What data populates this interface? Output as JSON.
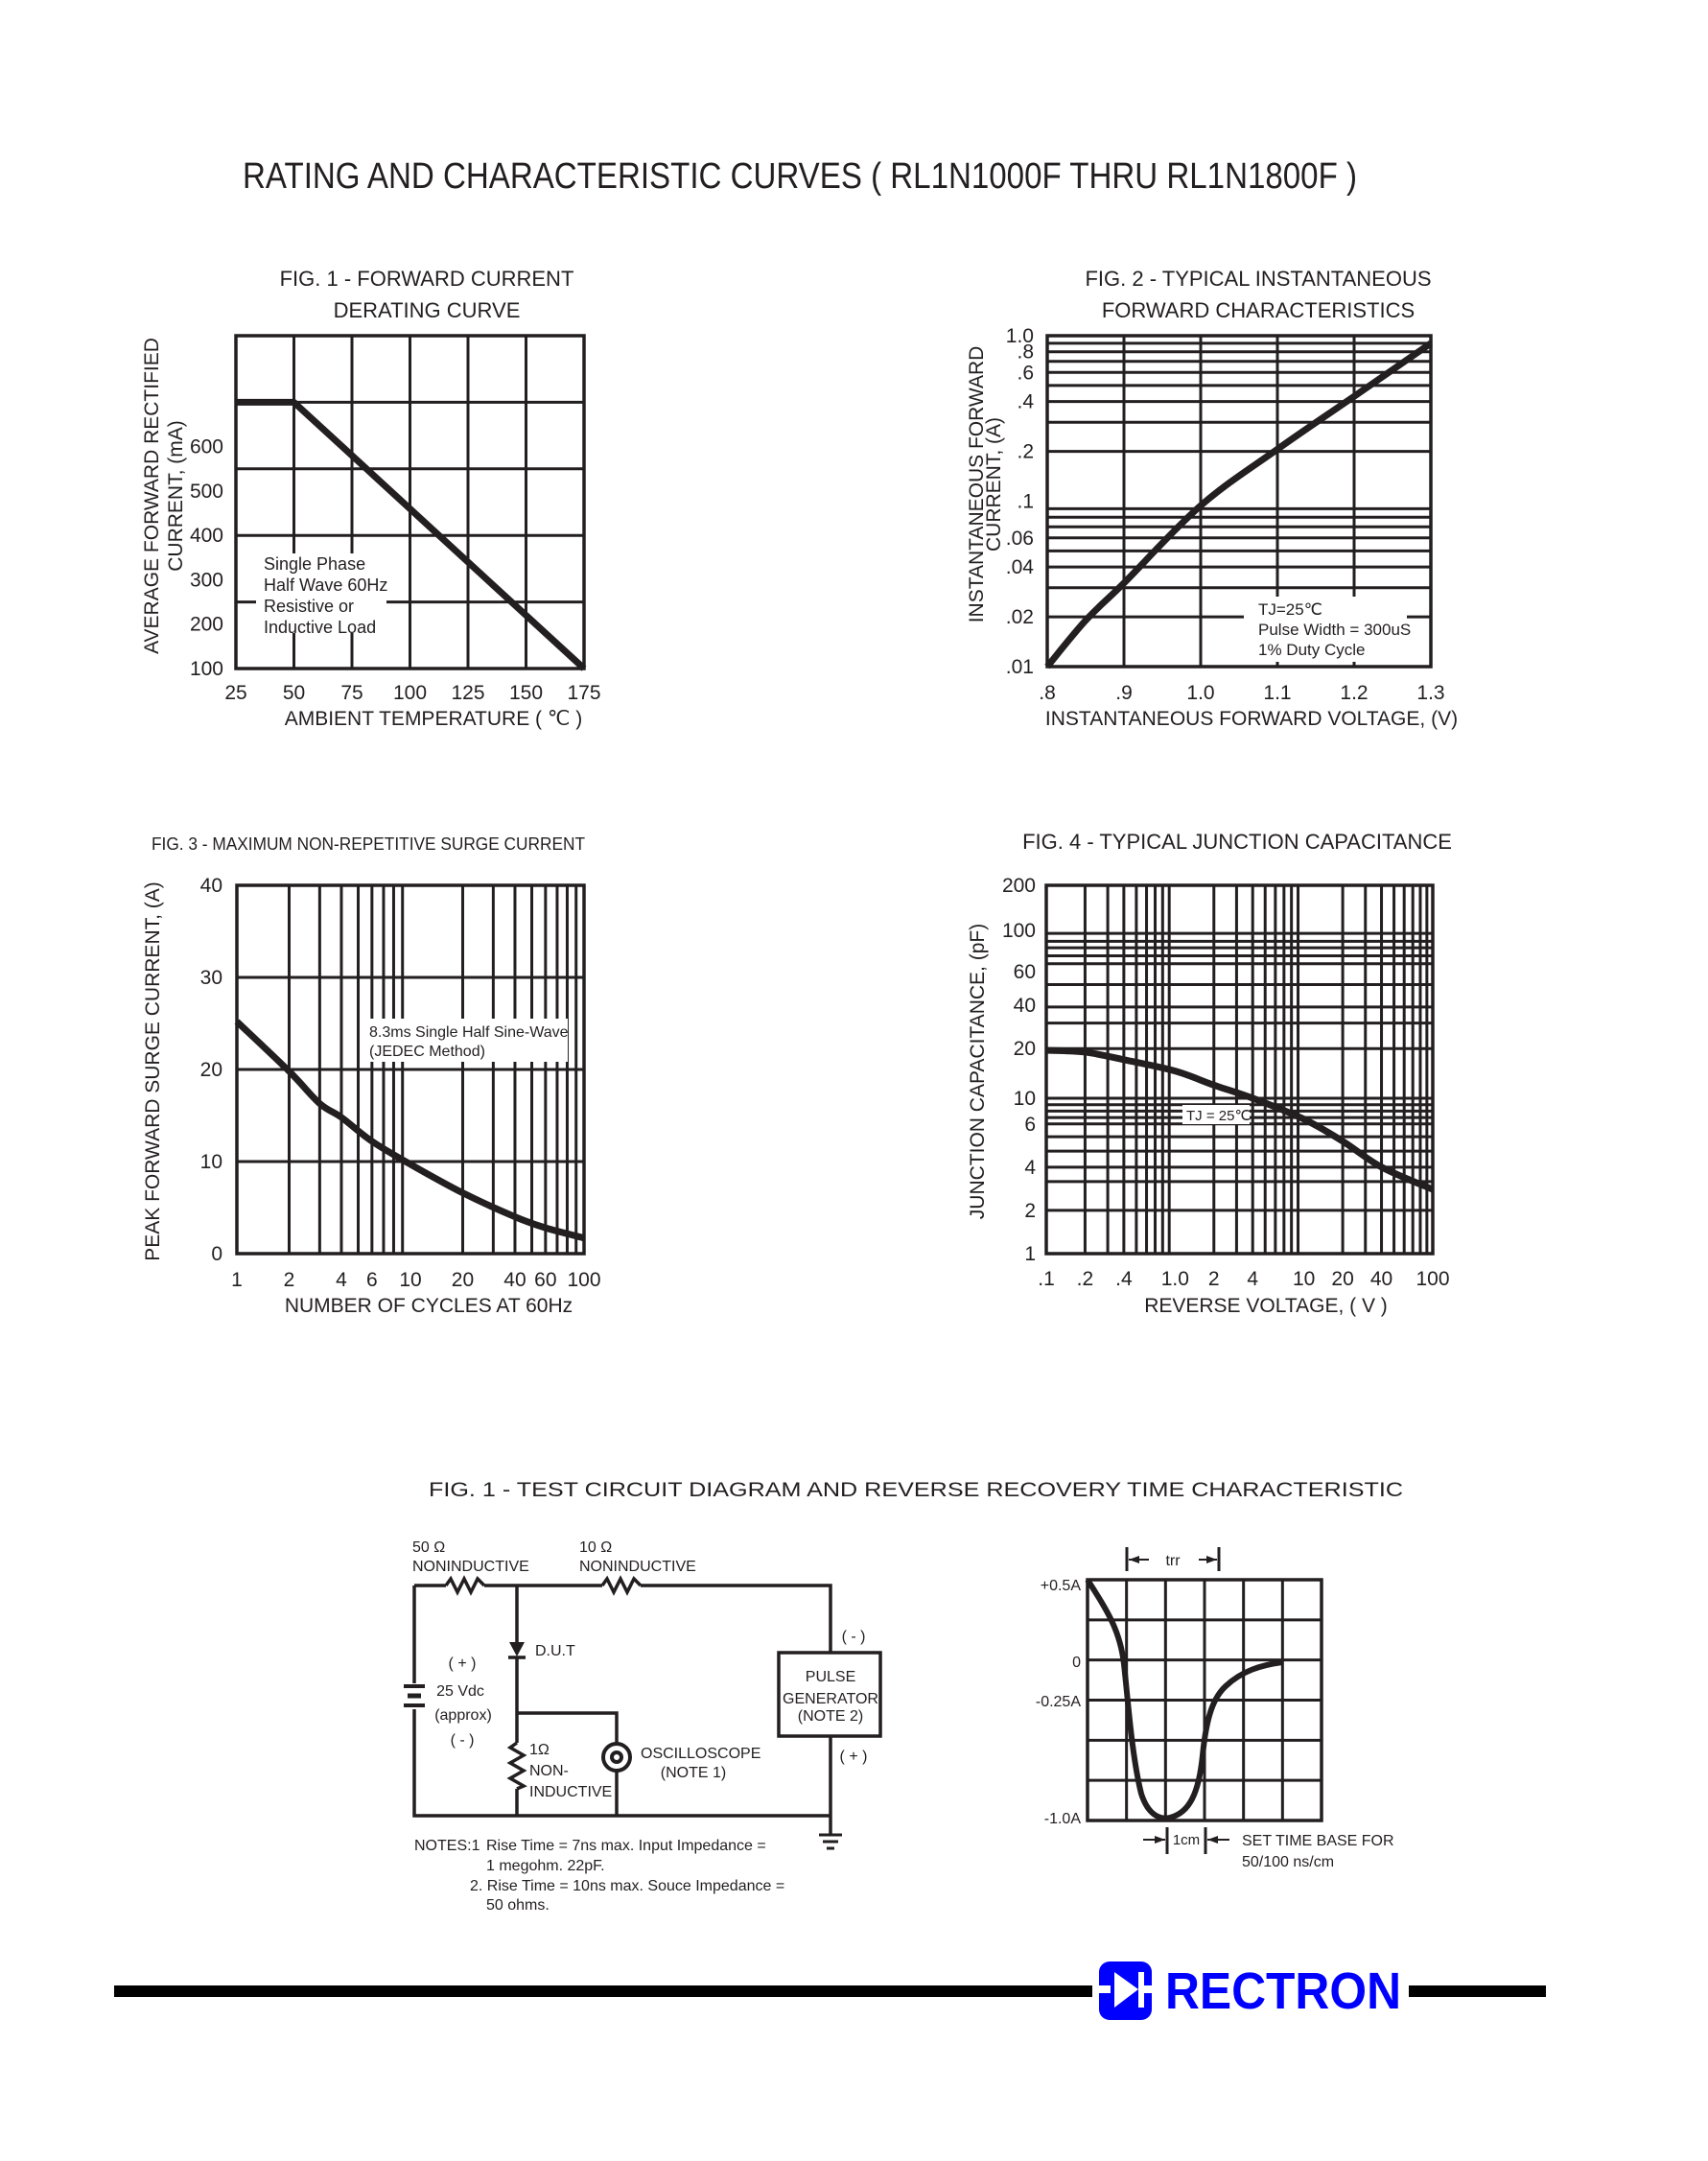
{
  "page_title": "RATING AND CHARACTERISTIC CURVES ( RL1N1000F THRU RL1N1800F )",
  "chart_data": [
    {
      "type": "line",
      "title_line1": "FIG. 1 - FORWARD CURRENT",
      "title_line2": "DERATING CURVE",
      "xlabel": "AMBIENT TEMPERATURE ( ℃ )",
      "ylabel_line1": "AVERAGE FORWARD RECTIFIED",
      "ylabel_line2": "CURRENT, (mA)",
      "x_scale": "linear",
      "y_scale": "linear",
      "xlim": [
        25,
        175
      ],
      "ylim": [
        100,
        850
      ],
      "grid": true,
      "x_ticks": [
        {
          "label": "25",
          "value": 25
        },
        {
          "label": "50",
          "value": 50
        },
        {
          "label": "75",
          "value": 75
        },
        {
          "label": "100",
          "value": 100
        },
        {
          "label": "125",
          "value": 125
        },
        {
          "label": "150",
          "value": 150
        },
        {
          "label": "175",
          "value": 175
        }
      ],
      "y_ticks": [
        {
          "label": "600",
          "value": 600
        },
        {
          "label": "500",
          "value": 500
        },
        {
          "label": "400",
          "value": 400
        },
        {
          "label": "300",
          "value": 300
        },
        {
          "label": "200",
          "value": 200
        },
        {
          "label": "100",
          "value": 100
        }
      ],
      "annotation": [
        "Single Phase",
        "Half Wave 60Hz",
        "Resistive or",
        "Inductive Load"
      ],
      "series": [
        {
          "x": [
            25,
            50,
            175
          ],
          "y": [
            700,
            700,
            100
          ]
        }
      ]
    },
    {
      "type": "line",
      "title_line1": "FIG. 2 - TYPICAL INSTANTANEOUS",
      "title_line2": "FORWARD CHARACTERISTICS",
      "xlabel": "INSTANTANEOUS FORWARD VOLTAGE, (V)",
      "ylabel_line1": "INSTANTANEOUS FORWARD",
      "ylabel_line2": "CURRENT, (A)",
      "x_scale": "linear",
      "y_scale": "log",
      "xlim": [
        0.8,
        1.3
      ],
      "ylim": [
        0.01,
        1.0
      ],
      "grid": true,
      "x_ticks": [
        {
          "label": ".8",
          "value": 0.8
        },
        {
          "label": ".9",
          "value": 0.9
        },
        {
          "label": "1.0",
          "value": 1.0
        },
        {
          "label": "1.1",
          "value": 1.1
        },
        {
          "label": "1.2",
          "value": 1.2
        },
        {
          "label": "1.3",
          "value": 1.3
        }
      ],
      "y_ticks": [
        {
          "label": "1.0",
          "value": 1.0
        },
        {
          "label": ".8",
          "value": 0.8
        },
        {
          "label": ".6",
          "value": 0.6
        },
        {
          "label": ".4",
          "value": 0.4
        },
        {
          "label": ".2",
          "value": 0.2
        },
        {
          "label": ".1",
          "value": 0.1
        },
        {
          "label": ".06",
          "value": 0.06
        },
        {
          "label": ".04",
          "value": 0.04
        },
        {
          "label": ".02",
          "value": 0.02
        },
        {
          "label": ".01",
          "value": 0.01
        }
      ],
      "annotation": [
        "TJ=25℃",
        "Pulse Width = 300uS",
        "1% Duty Cycle"
      ],
      "series": [
        {
          "x": [
            0.8,
            0.85,
            0.9,
            1.0,
            1.1,
            1.2,
            1.3
          ],
          "y": [
            0.01,
            0.019,
            0.032,
            0.094,
            0.206,
            0.43,
            0.9
          ]
        }
      ]
    },
    {
      "type": "line",
      "title_line1": "FIG. 3 - MAXIMUM NON-REPETITIVE SURGE CURRENT",
      "xlabel": "NUMBER OF CYCLES AT 60Hz",
      "ylabel_line1": "PEAK FORWARD SURGE CURRENT, (A)",
      "x_scale": "log",
      "y_scale": "linear",
      "xlim": [
        1,
        100
      ],
      "ylim": [
        0,
        40
      ],
      "grid": true,
      "x_ticks": [
        {
          "label": "1",
          "value": 1
        },
        {
          "label": "2",
          "value": 2
        },
        {
          "label": "4",
          "value": 4
        },
        {
          "label": "6",
          "value": 6
        },
        {
          "label": "10",
          "value": 10
        },
        {
          "label": "20",
          "value": 20
        },
        {
          "label": "40",
          "value": 40
        },
        {
          "label": "60",
          "value": 60
        },
        {
          "label": "100",
          "value": 100
        }
      ],
      "y_ticks": [
        {
          "label": "40",
          "value": 40
        },
        {
          "label": "30",
          "value": 30
        },
        {
          "label": "20",
          "value": 20
        },
        {
          "label": "10",
          "value": 10
        },
        {
          "label": "0",
          "value": 0
        }
      ],
      "annotation": [
        "8.3ms Single Half Sine-Wave",
        "(JEDEC Method)"
      ],
      "series": [
        {
          "x": [
            1,
            2,
            3,
            4,
            6,
            10,
            20,
            40,
            60,
            100
          ],
          "y": [
            25.2,
            19.8,
            16.3,
            14.8,
            12.2,
            9.7,
            6.6,
            4.0,
            2.8,
            1.7
          ]
        }
      ]
    },
    {
      "type": "line",
      "title_line1": "FIG. 4 - TYPICAL JUNCTION CAPACITANCE",
      "xlabel": "REVERSE VOLTAGE, ( V )",
      "ylabel_line1": "JUNCTION CAPACITANCE, (pF)",
      "x_scale": "log",
      "y_scale": "log",
      "xlim": [
        0.1,
        100
      ],
      "ylim": [
        1,
        200
      ],
      "grid": true,
      "x_ticks": [
        {
          "label": ".1",
          "value": 0.1
        },
        {
          "label": ".2",
          "value": 0.2
        },
        {
          "label": ".4",
          "value": 0.4
        },
        {
          "label": "1.0",
          "value": 1.0
        },
        {
          "label": "2",
          "value": 2
        },
        {
          "label": "4",
          "value": 4
        },
        {
          "label": "10",
          "value": 10
        },
        {
          "label": "20",
          "value": 20
        },
        {
          "label": "40",
          "value": 40
        },
        {
          "label": "100",
          "value": 100
        }
      ],
      "y_ticks": [
        {
          "label": "200",
          "value": 200
        },
        {
          "label": "100",
          "value": 100
        },
        {
          "label": "60",
          "value": 60
        },
        {
          "label": "40",
          "value": 40
        },
        {
          "label": "20",
          "value": 20
        },
        {
          "label": "10",
          "value": 10
        },
        {
          "label": "6",
          "value": 6
        },
        {
          "label": "4",
          "value": 4
        },
        {
          "label": "2",
          "value": 2
        },
        {
          "label": "1",
          "value": 1
        }
      ],
      "annotation": [
        "TJ = 25℃"
      ],
      "series": [
        {
          "x": [
            0.1,
            0.2,
            0.4,
            1.0,
            2,
            4,
            10,
            20,
            40,
            100
          ],
          "y": [
            19.5,
            19,
            17.1,
            14.6,
            12,
            10,
            6.6,
            5.1,
            4.0,
            2.8
          ]
        }
      ]
    }
  ],
  "circuit": {
    "title": "FIG. 1 - TEST CIRCUIT DIAGRAM  AND REVERSE RECOVERY TIME CHARACTERISTIC",
    "r50_value": "50 Ω",
    "r50_type": "NONINDUCTIVE",
    "r10_value": "10 Ω",
    "r10_type": "NONINDUCTIVE",
    "dut": "D.U.T",
    "supply_plus": "( + )",
    "supply_voltage": "25 Vdc",
    "supply_approx": "(approx)",
    "supply_minus": "( - )",
    "r1_value": "1Ω",
    "r1_type_1": "NON-",
    "r1_type_2": "INDUCTIVE",
    "scope_1": "OSCILLOSCOPE",
    "scope_2": "(NOTE 1)",
    "gen_1": "PULSE",
    "gen_2": "GENERATOR",
    "gen_3": "(NOTE 2)",
    "gen_minus": "( - )",
    "gen_plus": "( + )",
    "notes_label": "NOTES:1",
    "note1_line1": "Rise Time = 7ns max. Input Impedance =",
    "note1_line2": "1 megohm. 22pF.",
    "note2_line1": "2. Rise Time = 10ns max. Souce Impedance =",
    "note2_line2": "50 ohms."
  },
  "waveform": {
    "trr": "trr",
    "y_labels": [
      "+0.5A",
      "0",
      "-0.25A",
      "-1.0A"
    ],
    "scale_mark": "1cm",
    "timebase_1": "SET TIME BASE FOR",
    "timebase_2": "50/100 ns/cm"
  },
  "logo": {
    "text": "RECTRON",
    "color": "#0000ff"
  }
}
